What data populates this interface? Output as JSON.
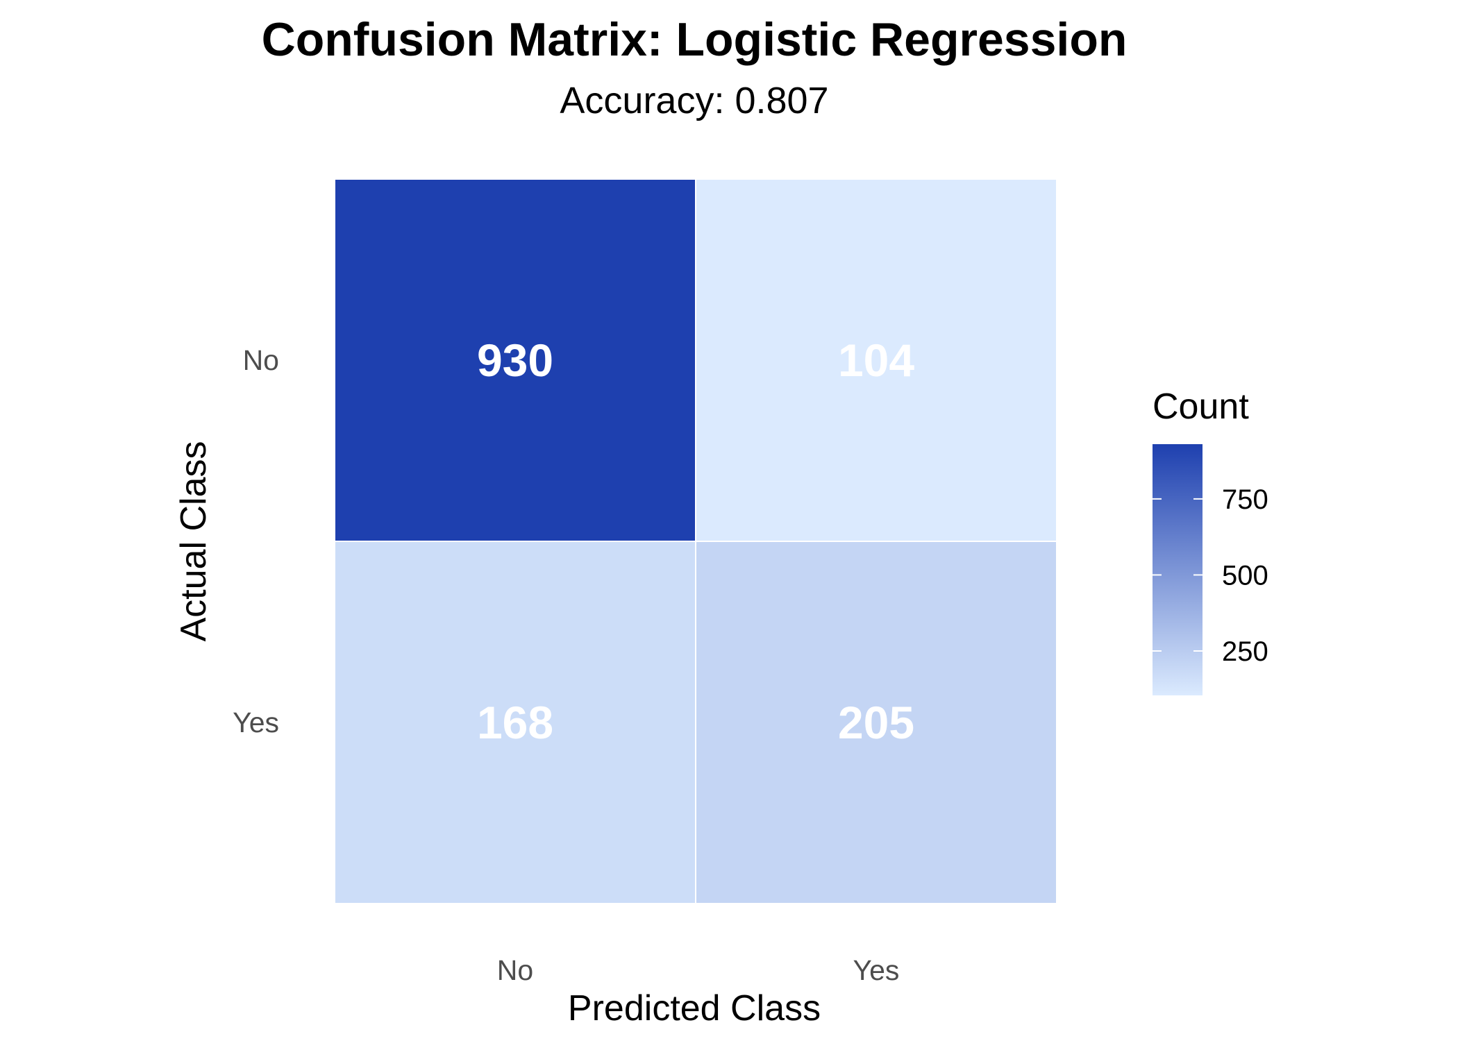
{
  "chart_data": {
    "type": "heatmap",
    "title": "Confusion Matrix: Logistic Regression",
    "subtitle": "Accuracy: 0.807",
    "xlabel": "Predicted Class",
    "ylabel": "Actual Class",
    "x_categories": [
      "No",
      "Yes"
    ],
    "y_categories": [
      "No",
      "Yes"
    ],
    "cells": [
      {
        "actual": "No",
        "predicted": "No",
        "value": 930,
        "label": "930"
      },
      {
        "actual": "No",
        "predicted": "Yes",
        "value": 104,
        "label": "104"
      },
      {
        "actual": "Yes",
        "predicted": "No",
        "value": 168,
        "label": "168"
      },
      {
        "actual": "Yes",
        "predicted": "Yes",
        "value": 205,
        "label": "205"
      }
    ],
    "legend": {
      "title": "Count",
      "min": 104,
      "max": 930,
      "ticks": [
        250,
        500,
        750
      ],
      "tick_labels": [
        "250",
        "500",
        "750"
      ],
      "placement": "right",
      "color_low": "#dbeafe",
      "color_high": "#1e40af"
    },
    "grid": false
  }
}
